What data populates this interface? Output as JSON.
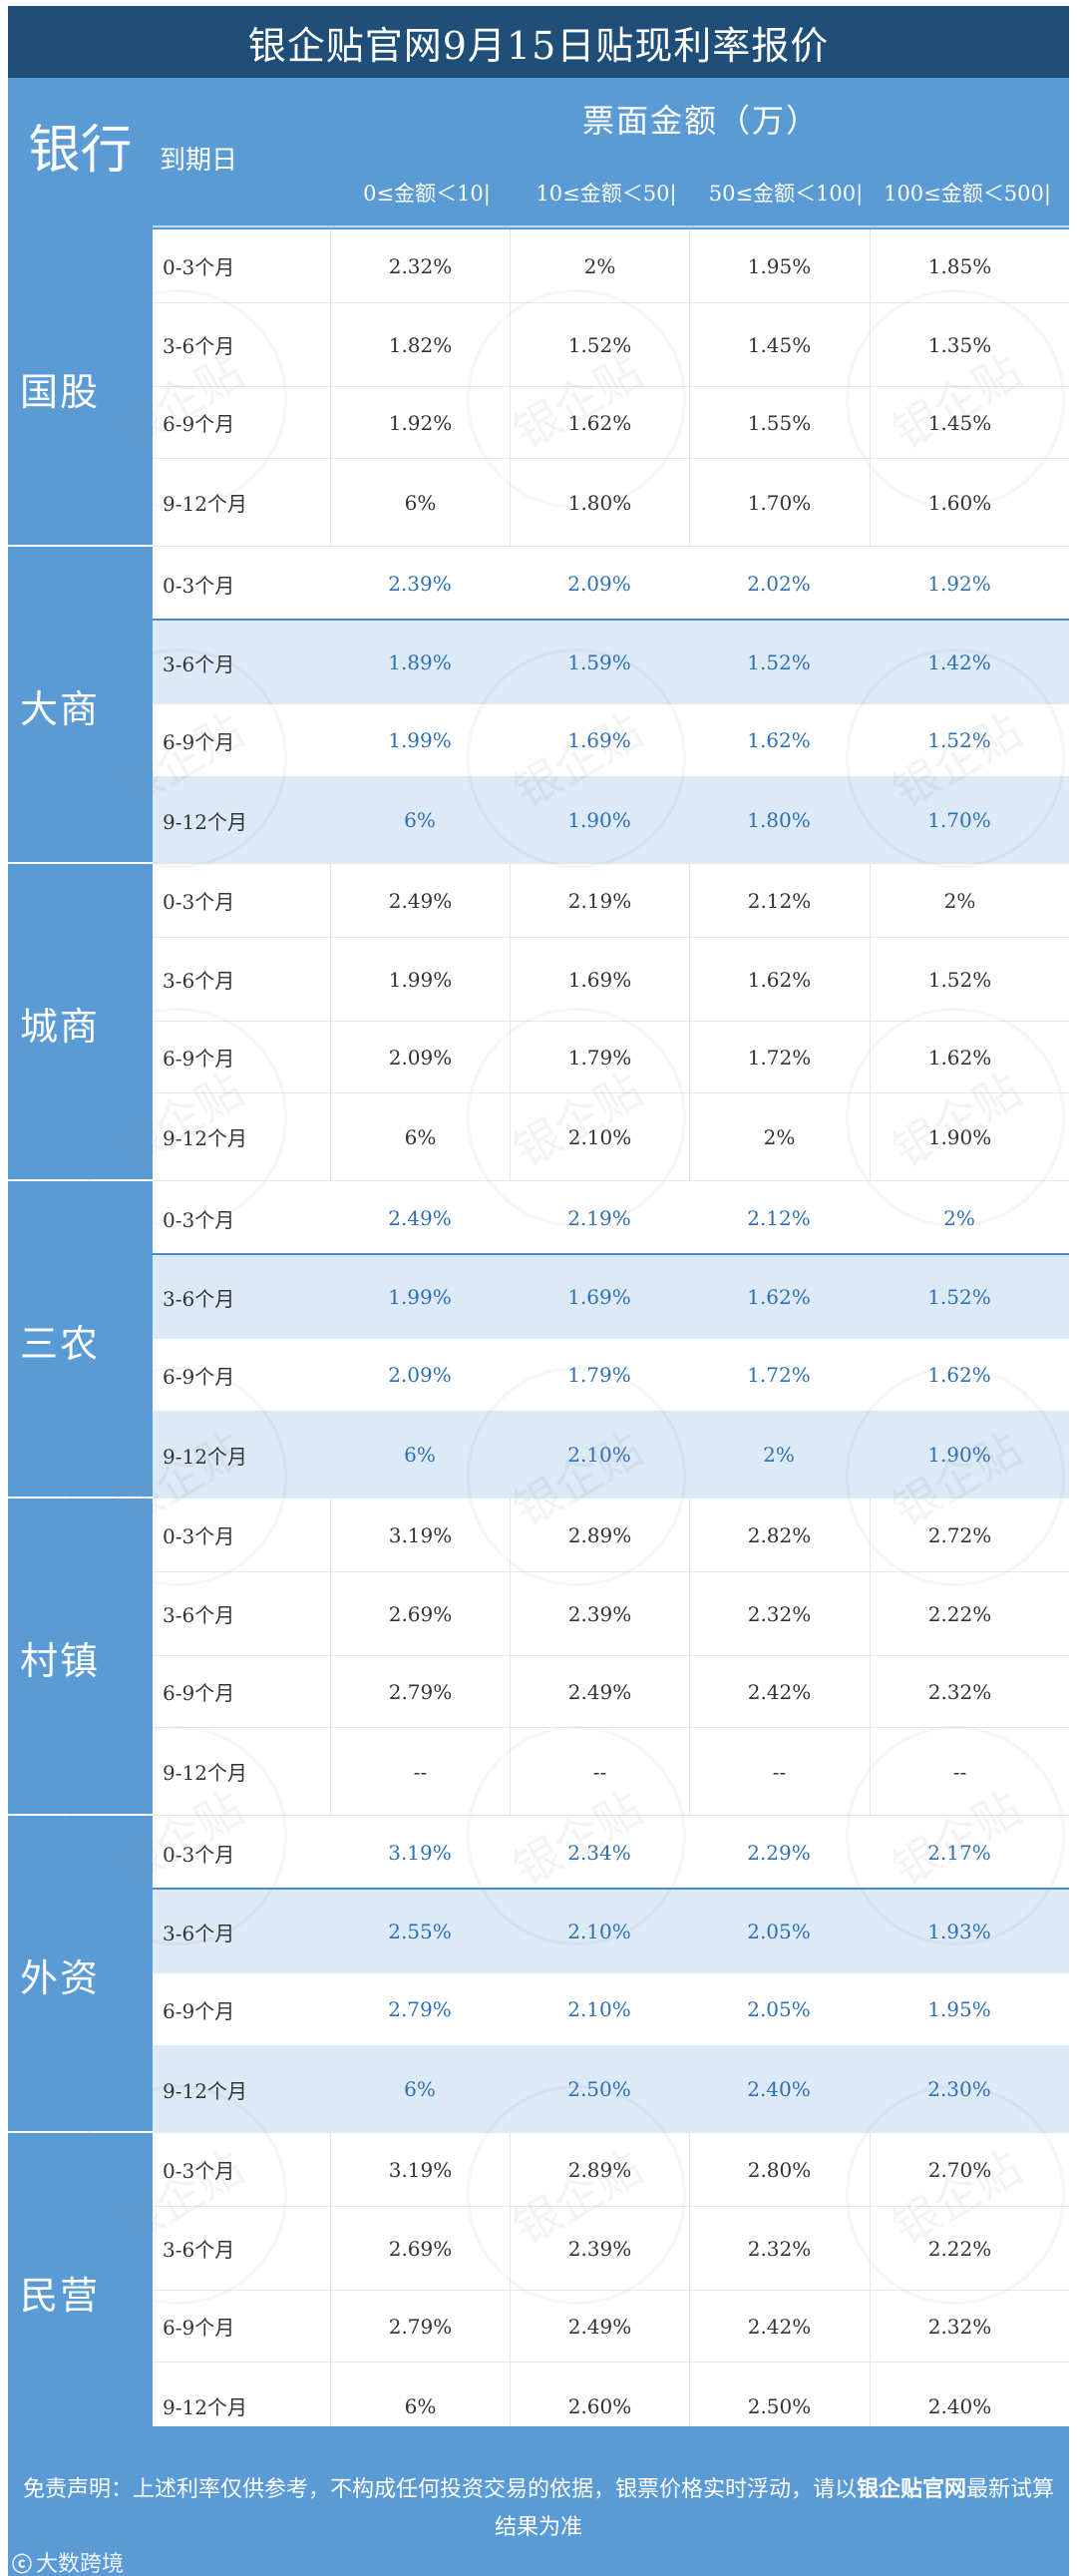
{
  "title": "银企贴官网9月15日贴现利率报价",
  "header": {
    "bank_label": "银行",
    "maturity_label": "到期日",
    "amount_label": "票面金额（万）",
    "ranges": [
      "0≤金额＜10|",
      "10≤金额＜50|",
      "50≤金额＜100|",
      "100≤金额＜500|"
    ]
  },
  "groups": [
    {
      "name": "国股",
      "rows": [
        {
          "term": "0-3个月",
          "rates": [
            "2.32%",
            "2%",
            "1.95%",
            "1.85%"
          ]
        },
        {
          "term": "3-6个月",
          "rates": [
            "1.82%",
            "1.52%",
            "1.45%",
            "1.35%"
          ]
        },
        {
          "term": "6-9个月",
          "rates": [
            "1.92%",
            "1.62%",
            "1.55%",
            "1.45%"
          ]
        },
        {
          "term": "9-12个月",
          "rates": [
            "6%",
            "1.80%",
            "1.70%",
            "1.60%"
          ]
        }
      ]
    },
    {
      "name": "大商",
      "rows": [
        {
          "term": "0-3个月",
          "rates": [
            "2.39%",
            "2.09%",
            "2.02%",
            "1.92%"
          ]
        },
        {
          "term": "3-6个月",
          "rates": [
            "1.89%",
            "1.59%",
            "1.52%",
            "1.42%"
          ]
        },
        {
          "term": "6-9个月",
          "rates": [
            "1.99%",
            "1.69%",
            "1.62%",
            "1.52%"
          ]
        },
        {
          "term": "9-12个月",
          "rates": [
            "6%",
            "1.90%",
            "1.80%",
            "1.70%"
          ]
        }
      ]
    },
    {
      "name": "城商",
      "rows": [
        {
          "term": "0-3个月",
          "rates": [
            "2.49%",
            "2.19%",
            "2.12%",
            "2%"
          ]
        },
        {
          "term": "3-6个月",
          "rates": [
            "1.99%",
            "1.69%",
            "1.62%",
            "1.52%"
          ]
        },
        {
          "term": "6-9个月",
          "rates": [
            "2.09%",
            "1.79%",
            "1.72%",
            "1.62%"
          ]
        },
        {
          "term": "9-12个月",
          "rates": [
            "6%",
            "2.10%",
            "2%",
            "1.90%"
          ]
        }
      ]
    },
    {
      "name": "三农",
      "rows": [
        {
          "term": "0-3个月",
          "rates": [
            "2.49%",
            "2.19%",
            "2.12%",
            "2%"
          ]
        },
        {
          "term": "3-6个月",
          "rates": [
            "1.99%",
            "1.69%",
            "1.62%",
            "1.52%"
          ]
        },
        {
          "term": "6-9个月",
          "rates": [
            "2.09%",
            "1.79%",
            "1.72%",
            "1.62%"
          ]
        },
        {
          "term": "9-12个月",
          "rates": [
            "6%",
            "2.10%",
            "2%",
            "1.90%"
          ]
        }
      ]
    },
    {
      "name": "村镇",
      "rows": [
        {
          "term": "0-3个月",
          "rates": [
            "3.19%",
            "2.89%",
            "2.82%",
            "2.72%"
          ]
        },
        {
          "term": "3-6个月",
          "rates": [
            "2.69%",
            "2.39%",
            "2.32%",
            "2.22%"
          ]
        },
        {
          "term": "6-9个月",
          "rates": [
            "2.79%",
            "2.49%",
            "2.42%",
            "2.32%"
          ]
        },
        {
          "term": "9-12个月",
          "rates": [
            "--",
            "--",
            "--",
            "--"
          ]
        }
      ]
    },
    {
      "name": "外资",
      "rows": [
        {
          "term": "0-3个月",
          "rates": [
            "3.19%",
            "2.34%",
            "2.29%",
            "2.17%"
          ]
        },
        {
          "term": "3-6个月",
          "rates": [
            "2.55%",
            "2.10%",
            "2.05%",
            "1.93%"
          ]
        },
        {
          "term": "6-9个月",
          "rates": [
            "2.79%",
            "2.10%",
            "2.05%",
            "1.95%"
          ]
        },
        {
          "term": "9-12个月",
          "rates": [
            "6%",
            "2.50%",
            "2.40%",
            "2.30%"
          ]
        }
      ]
    },
    {
      "name": "民营",
      "rows": [
        {
          "term": "0-3个月",
          "rates": [
            "3.19%",
            "2.89%",
            "2.80%",
            "2.70%"
          ]
        },
        {
          "term": "3-6个月",
          "rates": [
            "2.69%",
            "2.39%",
            "2.32%",
            "2.22%"
          ]
        },
        {
          "term": "6-9个月",
          "rates": [
            "2.79%",
            "2.49%",
            "2.42%",
            "2.32%"
          ]
        },
        {
          "term": "9-12个月",
          "rates": [
            "6%",
            "2.60%",
            "2.50%",
            "2.40%"
          ]
        }
      ]
    }
  ],
  "footer": {
    "disclaimer_prefix": "免责声明：上述利率仅供参考，不构成任何投资交易的依据，银票价格实时浮动，请以",
    "disclaimer_brand": "银企贴官网",
    "disclaimer_suffix": "最新试算结果为准",
    "source_logo": "大数跨境"
  },
  "watermark_text": "银企贴",
  "colors": {
    "title_bg": "#1f4e79",
    "header_bg": "#5b9bd5",
    "shade_row": "#dce9f6",
    "alt_text": "#2f6fb3"
  }
}
